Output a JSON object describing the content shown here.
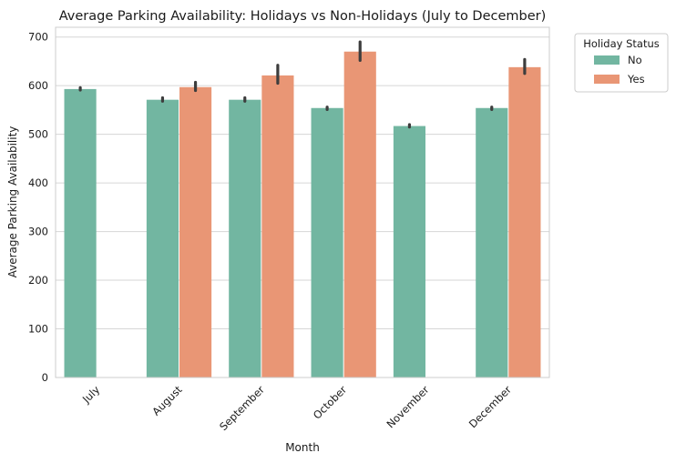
{
  "chart_data": {
    "type": "bar",
    "title": "Average Parking Availability: Holidays vs Non-Holidays (July to December)",
    "xlabel": "Month",
    "ylabel": "Average Parking Availability",
    "ylim": [
      0,
      720
    ],
    "yticks": [
      0,
      100,
      200,
      300,
      400,
      500,
      600,
      700
    ],
    "grid": "horizontal",
    "categories": [
      "July",
      "August",
      "September",
      "October",
      "November",
      "December"
    ],
    "legend": {
      "title": "Holiday Status",
      "placement": "outside-top-right"
    },
    "series": [
      {
        "name": "No",
        "color": "#72b6a1",
        "values": [
          593,
          571,
          571,
          554,
          517,
          554
        ],
        "ci": [
          [
            591,
            596
          ],
          [
            568,
            575
          ],
          [
            568,
            575
          ],
          [
            551,
            556
          ],
          [
            515,
            520
          ],
          [
            551,
            556
          ]
        ]
      },
      {
        "name": "Yes",
        "color": "#e99675",
        "values": [
          null,
          597,
          621,
          670,
          null,
          638
        ],
        "ci": [
          null,
          [
            590,
            607
          ],
          [
            605,
            642
          ],
          [
            652,
            690
          ],
          null,
          [
            625,
            654
          ]
        ]
      }
    ]
  }
}
